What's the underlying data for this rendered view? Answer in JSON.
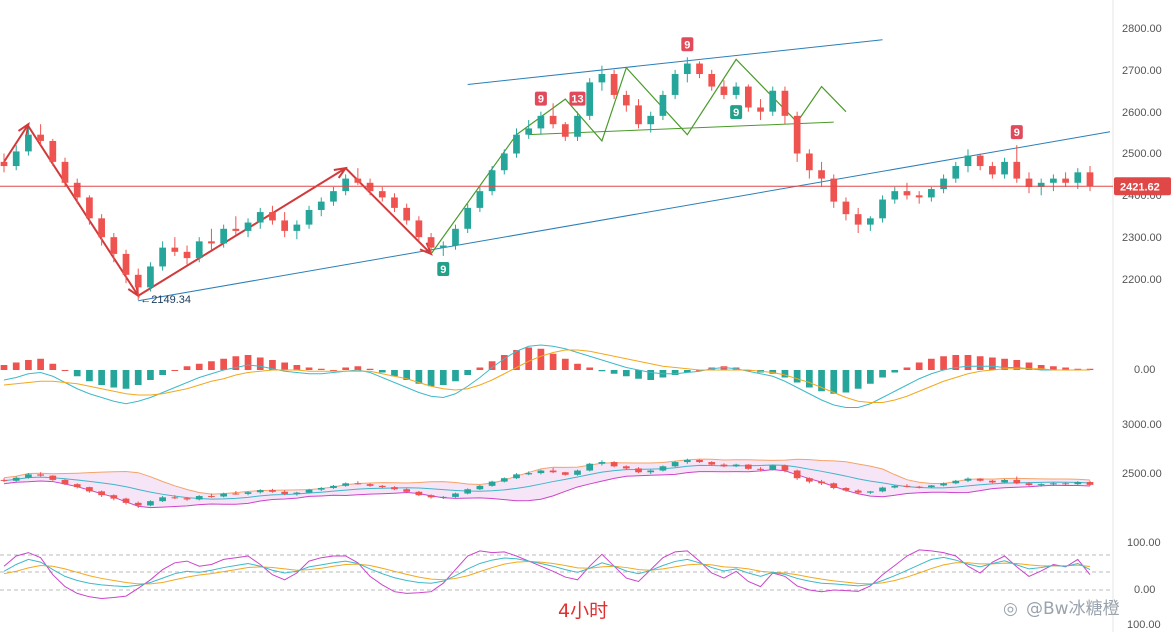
{
  "chart_data": {
    "type": "candlestick",
    "timeframe_label": "4小时",
    "watermark": "@Bw冰糖橙",
    "current_price": "2421.62",
    "current_price_color": "#e04848",
    "low_annotation": "←2149.34",
    "up_color": "#26a69a",
    "down_color": "#ef5350",
    "price_axis": {
      "range": [
        2100,
        2850
      ],
      "ticks": [
        "2800.00",
        "2700.00",
        "2600.00",
        "2500.00",
        "2400.00",
        "2300.00",
        "2200.00"
      ]
    },
    "ohlc": [
      [
        2480,
        2500,
        2455,
        2470
      ],
      [
        2470,
        2520,
        2460,
        2505
      ],
      [
        2505,
        2560,
        2495,
        2545
      ],
      [
        2545,
        2570,
        2520,
        2530
      ],
      [
        2530,
        2535,
        2470,
        2480
      ],
      [
        2480,
        2490,
        2420,
        2430
      ],
      [
        2430,
        2440,
        2380,
        2395
      ],
      [
        2395,
        2400,
        2330,
        2345
      ],
      [
        2345,
        2355,
        2280,
        2300
      ],
      [
        2300,
        2310,
        2240,
        2260
      ],
      [
        2260,
        2270,
        2190,
        2210
      ],
      [
        2210,
        2225,
        2150,
        2180
      ],
      [
        2180,
        2240,
        2170,
        2230
      ],
      [
        2230,
        2290,
        2220,
        2275
      ],
      [
        2275,
        2300,
        2255,
        2265
      ],
      [
        2265,
        2280,
        2235,
        2250
      ],
      [
        2250,
        2300,
        2240,
        2290
      ],
      [
        2290,
        2320,
        2270,
        2285
      ],
      [
        2285,
        2330,
        2275,
        2320
      ],
      [
        2320,
        2350,
        2305,
        2315
      ],
      [
        2315,
        2345,
        2300,
        2335
      ],
      [
        2335,
        2370,
        2320,
        2360
      ],
      [
        2360,
        2375,
        2330,
        2340
      ],
      [
        2340,
        2360,
        2300,
        2315
      ],
      [
        2315,
        2340,
        2295,
        2330
      ],
      [
        2330,
        2375,
        2320,
        2365
      ],
      [
        2365,
        2395,
        2350,
        2385
      ],
      [
        2385,
        2420,
        2375,
        2410
      ],
      [
        2410,
        2450,
        2400,
        2440
      ],
      [
        2440,
        2465,
        2425,
        2430
      ],
      [
        2430,
        2440,
        2400,
        2410
      ],
      [
        2410,
        2420,
        2385,
        2395
      ],
      [
        2395,
        2405,
        2360,
        2370
      ],
      [
        2370,
        2380,
        2330,
        2340
      ],
      [
        2340,
        2350,
        2290,
        2300
      ],
      [
        2300,
        2310,
        2260,
        2275
      ],
      [
        2275,
        2290,
        2255,
        2280
      ],
      [
        2280,
        2330,
        2270,
        2320
      ],
      [
        2320,
        2380,
        2310,
        2370
      ],
      [
        2370,
        2420,
        2360,
        2410
      ],
      [
        2410,
        2470,
        2400,
        2460
      ],
      [
        2460,
        2510,
        2450,
        2500
      ],
      [
        2500,
        2560,
        2490,
        2545
      ],
      [
        2545,
        2580,
        2535,
        2560
      ],
      [
        2560,
        2600,
        2545,
        2590
      ],
      [
        2590,
        2620,
        2560,
        2570
      ],
      [
        2570,
        2575,
        2530,
        2540
      ],
      [
        2540,
        2600,
        2530,
        2590
      ],
      [
        2590,
        2680,
        2580,
        2670
      ],
      [
        2670,
        2710,
        2650,
        2690
      ],
      [
        2690,
        2700,
        2630,
        2640
      ],
      [
        2640,
        2650,
        2600,
        2615
      ],
      [
        2615,
        2630,
        2560,
        2570
      ],
      [
        2570,
        2600,
        2550,
        2590
      ],
      [
        2590,
        2650,
        2580,
        2640
      ],
      [
        2640,
        2700,
        2630,
        2690
      ],
      [
        2690,
        2730,
        2670,
        2715
      ],
      [
        2715,
        2720,
        2680,
        2690
      ],
      [
        2690,
        2700,
        2650,
        2660
      ],
      [
        2660,
        2675,
        2630,
        2640
      ],
      [
        2640,
        2670,
        2630,
        2660
      ],
      [
        2660,
        2665,
        2600,
        2610
      ],
      [
        2610,
        2630,
        2580,
        2600
      ],
      [
        2600,
        2660,
        2590,
        2650
      ],
      [
        2650,
        2660,
        2570,
        2590
      ],
      [
        2590,
        2600,
        2480,
        2500
      ],
      [
        2500,
        2510,
        2440,
        2460
      ],
      [
        2460,
        2480,
        2420,
        2440
      ],
      [
        2440,
        2450,
        2370,
        2385
      ],
      [
        2385,
        2395,
        2340,
        2355
      ],
      [
        2355,
        2370,
        2310,
        2330
      ],
      [
        2330,
        2350,
        2315,
        2345
      ],
      [
        2345,
        2400,
        2335,
        2390
      ],
      [
        2390,
        2420,
        2380,
        2410
      ],
      [
        2410,
        2430,
        2390,
        2400
      ],
      [
        2400,
        2410,
        2380,
        2395
      ],
      [
        2395,
        2420,
        2385,
        2415
      ],
      [
        2415,
        2450,
        2405,
        2440
      ],
      [
        2440,
        2480,
        2430,
        2470
      ],
      [
        2470,
        2510,
        2455,
        2495
      ],
      [
        2495,
        2500,
        2460,
        2470
      ],
      [
        2470,
        2480,
        2440,
        2450
      ],
      [
        2450,
        2490,
        2440,
        2480
      ],
      [
        2480,
        2520,
        2430,
        2440
      ],
      [
        2440,
        2455,
        2405,
        2420
      ],
      [
        2420,
        2440,
        2400,
        2430
      ],
      [
        2430,
        2450,
        2410,
        2440
      ],
      [
        2440,
        2455,
        2420,
        2430
      ],
      [
        2430,
        2465,
        2415,
        2455
      ],
      [
        2455,
        2470,
        2410,
        2421.62
      ]
    ],
    "td_markers": [
      {
        "label": "9",
        "color": "#e04a5a",
        "candle": 44,
        "pos": "above"
      },
      {
        "label": "13",
        "color": "#e04a5a",
        "candle": 47,
        "pos": "above"
      },
      {
        "label": "9",
        "color": "#e04a5a",
        "candle": 56,
        "pos": "above"
      },
      {
        "label": "9",
        "color": "#e04a5a",
        "candle": 83,
        "pos": "above"
      },
      {
        "label": "9",
        "color": "#22a08a",
        "candle": 36,
        "pos": "below"
      },
      {
        "label": "9",
        "color": "#22a08a",
        "candle": 60,
        "pos": "below"
      }
    ],
    "macd": {
      "zero_label": "0.00",
      "hist": [
        4,
        6,
        8,
        9,
        5,
        0,
        -5,
        -9,
        -12,
        -14,
        -15,
        -12,
        -8,
        -4,
        0,
        3,
        5,
        7,
        9,
        11,
        12,
        10,
        8,
        6,
        4,
        2,
        1,
        0,
        2,
        3,
        1,
        -2,
        -5,
        -8,
        -11,
        -13,
        -12,
        -9,
        -4,
        2,
        7,
        12,
        16,
        18,
        17,
        13,
        9,
        5,
        2,
        -1,
        -3,
        -5,
        -7,
        -8,
        -6,
        -4,
        -2,
        0,
        2,
        3,
        2,
        0,
        -2,
        -3,
        -6,
        -10,
        -14,
        -17,
        -19,
        -18,
        -15,
        -11,
        -6,
        -2,
        2,
        6,
        9,
        11,
        12,
        12,
        11,
        10,
        9,
        8,
        6,
        4,
        3,
        2,
        1,
        1
      ],
      "dif": [
        -8,
        -6,
        -3,
        -2,
        -5,
        -10,
        -15,
        -19,
        -22,
        -25,
        -27,
        -25,
        -22,
        -18,
        -14,
        -10,
        -6,
        -3,
        0,
        2,
        4,
        3,
        1,
        -1,
        -2,
        -3,
        -3,
        -2,
        -1,
        0,
        -2,
        -6,
        -10,
        -14,
        -18,
        -21,
        -22,
        -19,
        -13,
        -6,
        2,
        9,
        15,
        19,
        20,
        19,
        17,
        14,
        11,
        8,
        5,
        2,
        0,
        -2,
        -3,
        -3,
        -2,
        -1,
        1,
        2,
        1,
        -1,
        -3,
        -5,
        -9,
        -14,
        -19,
        -24,
        -28,
        -30,
        -30,
        -27,
        -22,
        -17,
        -12,
        -7,
        -3,
        0,
        2,
        3,
        3,
        3,
        2,
        2,
        1,
        0,
        0,
        0,
        0,
        0
      ],
      "dea": [
        -12,
        -11,
        -10,
        -9,
        -9,
        -10,
        -11,
        -13,
        -15,
        -17,
        -19,
        -20,
        -20,
        -19,
        -17,
        -15,
        -12,
        -9,
        -7,
        -4,
        -2,
        -1,
        0,
        0,
        0,
        -1,
        -1,
        -1,
        -1,
        -1,
        -1,
        -3,
        -5,
        -7,
        -10,
        -13,
        -15,
        -16,
        -15,
        -12,
        -8,
        -3,
        2,
        7,
        11,
        14,
        16,
        16,
        15,
        13,
        11,
        9,
        7,
        5,
        3,
        2,
        1,
        0,
        0,
        0,
        0,
        0,
        -1,
        -2,
        -4,
        -7,
        -10,
        -14,
        -18,
        -22,
        -25,
        -26,
        -26,
        -24,
        -21,
        -17,
        -13,
        -9,
        -6,
        -3,
        -1,
        0,
        1,
        1,
        1,
        1,
        0,
        0,
        0,
        0
      ],
      "dif_color": "#3fb9c9",
      "dea_color": "#f2a81e"
    },
    "bollinger": {
      "tick_top": "3000.00",
      "tick_mid": "2500.00",
      "band_fill": "#f6e4f7",
      "upper_color": "#f4a36a",
      "lower_color": "#cc44cc",
      "mid_color": "#40b6c8"
    },
    "kdj": {
      "tick_top": "100.00",
      "tick_mid": "0.00",
      "tick_bottom": "100.00",
      "k": [
        55,
        75,
        90,
        82,
        60,
        40,
        28,
        20,
        15,
        12,
        10,
        14,
        22,
        35,
        48,
        55,
        52,
        58,
        66,
        72,
        78,
        70,
        58,
        50,
        55,
        68,
        74,
        80,
        85,
        78,
        62,
        48,
        36,
        28,
        22,
        20,
        26,
        42,
        62,
        78,
        88,
        94,
        92,
        85,
        78,
        70,
        60,
        52,
        64,
        80,
        70,
        56,
        48,
        58,
        72,
        84,
        90,
        80,
        66,
        56,
        62,
        50,
        40,
        52,
        46,
        34,
        26,
        20,
        18,
        15,
        12,
        16,
        28,
        42,
        58,
        74,
        90,
        96,
        88,
        76,
        68,
        78,
        86,
        74,
        62,
        66,
        72,
        70,
        78,
        60
      ],
      "d": [
        48,
        55,
        65,
        72,
        70,
        62,
        52,
        42,
        34,
        28,
        22,
        18,
        18,
        22,
        30,
        38,
        44,
        48,
        54,
        60,
        66,
        68,
        66,
        62,
        58,
        60,
        64,
        70,
        75,
        76,
        72,
        64,
        55,
        46,
        38,
        32,
        30,
        34,
        42,
        54,
        66,
        76,
        82,
        84,
        82,
        78,
        72,
        65,
        64,
        68,
        70,
        66,
        60,
        58,
        62,
        68,
        74,
        76,
        74,
        68,
        66,
        62,
        55,
        52,
        50,
        45,
        38,
        32,
        27,
        23,
        19,
        18,
        21,
        28,
        38,
        50,
        63,
        74,
        80,
        80,
        77,
        77,
        79,
        78,
        74,
        71,
        71,
        71,
        73,
        69
      ],
      "j": [
        70,
        100,
        110,
        95,
        45,
        10,
        -10,
        -20,
        -25,
        -22,
        -18,
        5,
        30,
        60,
        80,
        85,
        70,
        75,
        90,
        95,
        100,
        75,
        45,
        30,
        50,
        85,
        95,
        100,
        100,
        80,
        40,
        15,
        -5,
        -10,
        -8,
        -5,
        20,
        60,
        100,
        115,
        110,
        112,
        100,
        85,
        70,
        55,
        38,
        30,
        70,
        105,
        70,
        35,
        25,
        60,
        95,
        112,
        115,
        85,
        50,
        35,
        55,
        25,
        10,
        50,
        40,
        12,
        0,
        -5,
        0,
        -2,
        -4,
        12,
        45,
        72,
        100,
        118,
        115,
        110,
        100,
        70,
        50,
        82,
        100,
        68,
        40,
        56,
        75,
        68,
        90,
        45
      ],
      "k_color": "#3fb9c9",
      "d_color": "#f2a81e",
      "j_color": "#cc44cc"
    }
  }
}
